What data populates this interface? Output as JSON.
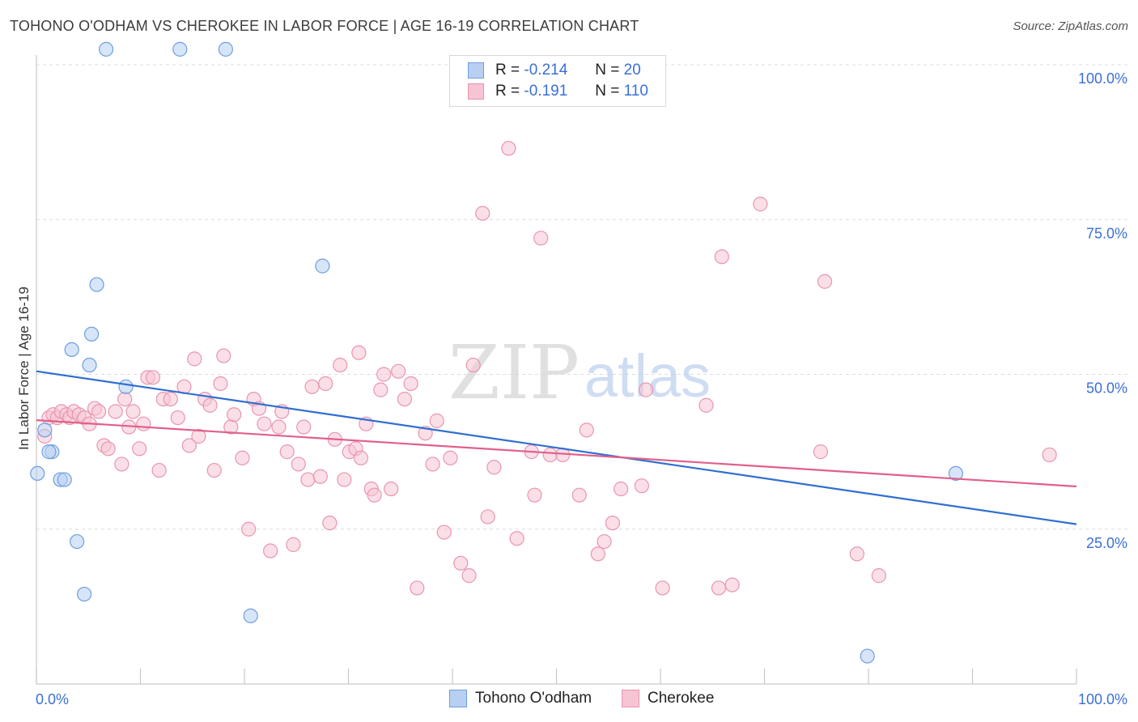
{
  "title": "TOHONO O'ODHAM VS CHEROKEE IN LABOR FORCE | AGE 16-19 CORRELATION CHART",
  "source": "Source: ZipAtlas.com",
  "watermark": {
    "zip": "ZIP",
    "atlas": "atlas"
  },
  "legend": {
    "rows": [
      {
        "r_label": "R =",
        "r_value": "-0.214",
        "n_label": "N =",
        "n_value": "20"
      },
      {
        "r_label": "R =",
        "r_value": "-0.191",
        "n_label": "N =",
        "n_value": "110"
      }
    ]
  },
  "colors": {
    "blue_fill": "#b7d0f2",
    "blue_stroke": "#6e9ee0",
    "blue_line": "#2f6fd1",
    "pink_fill": "#f7c4d3",
    "pink_stroke": "#e895b0",
    "pink_line": "#e0608a",
    "tick_label": "#3a6fd8",
    "grid": "#dcdcdc"
  },
  "chart_data": {
    "type": "scatter",
    "title": "TOHONO O'ODHAM VS CHEROKEE IN LABOR FORCE | AGE 16-19 CORRELATION CHART",
    "xlabel": "",
    "ylabel": "In Labor Force | Age 16-19",
    "xlim": [
      0,
      100
    ],
    "ylim": [
      0,
      105
    ],
    "x_tick_labels": [
      "0.0%",
      "100.0%"
    ],
    "y_ticks": [
      25,
      50,
      75,
      100
    ],
    "y_tick_labels": [
      "25.0%",
      "50.0%",
      "75.0%",
      "100.0%"
    ],
    "series": [
      {
        "name": "Tohono O'odham",
        "color": "blue",
        "r": -0.214,
        "n": 20,
        "trend": {
          "x": [
            0,
            100
          ],
          "y": [
            50.5,
            25.8
          ]
        },
        "points": [
          [
            6.7,
            102.5
          ],
          [
            13.8,
            102.5
          ],
          [
            18.2,
            102.5
          ],
          [
            27.5,
            67.5
          ],
          [
            5.8,
            64.5
          ],
          [
            5.3,
            56.5
          ],
          [
            3.4,
            54.0
          ],
          [
            5.1,
            51.5
          ],
          [
            8.6,
            48.0
          ],
          [
            0.8,
            41.0
          ],
          [
            1.5,
            37.5
          ],
          [
            0.1,
            34.0
          ],
          [
            2.3,
            33.0
          ],
          [
            2.7,
            33.0
          ],
          [
            3.9,
            23.0
          ],
          [
            4.6,
            14.5
          ],
          [
            20.6,
            11.0
          ],
          [
            88.4,
            34.0
          ],
          [
            79.9,
            4.5
          ],
          [
            1.2,
            37.5
          ]
        ]
      },
      {
        "name": "Cherokee",
        "color": "pink",
        "r": -0.191,
        "n": 110,
        "trend": {
          "x": [
            0,
            100
          ],
          "y": [
            42.6,
            31.9
          ]
        },
        "points": [
          [
            0.8,
            40.0
          ],
          [
            1.2,
            43.0
          ],
          [
            1.6,
            43.5
          ],
          [
            2.0,
            43.0
          ],
          [
            2.4,
            44.0
          ],
          [
            2.9,
            43.5
          ],
          [
            3.2,
            43.0
          ],
          [
            3.6,
            44.0
          ],
          [
            4.1,
            43.5
          ],
          [
            4.6,
            43.0
          ],
          [
            5.1,
            42.0
          ],
          [
            5.6,
            44.5
          ],
          [
            6.0,
            44.0
          ],
          [
            6.5,
            38.5
          ],
          [
            6.9,
            38.0
          ],
          [
            7.6,
            44.0
          ],
          [
            8.2,
            35.5
          ],
          [
            8.9,
            41.5
          ],
          [
            9.3,
            44.0
          ],
          [
            9.9,
            38.0
          ],
          [
            10.3,
            42.0
          ],
          [
            10.7,
            49.5
          ],
          [
            11.2,
            49.5
          ],
          [
            11.8,
            34.5
          ],
          [
            12.2,
            46.0
          ],
          [
            12.9,
            46.0
          ],
          [
            13.6,
            43.0
          ],
          [
            14.2,
            48.0
          ],
          [
            14.7,
            38.5
          ],
          [
            15.2,
            52.5
          ],
          [
            15.6,
            40.0
          ],
          [
            16.2,
            46.0
          ],
          [
            16.7,
            45.0
          ],
          [
            17.1,
            34.5
          ],
          [
            17.7,
            48.5
          ],
          [
            18.0,
            53.0
          ],
          [
            18.7,
            41.5
          ],
          [
            19.0,
            43.5
          ],
          [
            19.8,
            36.5
          ],
          [
            20.4,
            25.0
          ],
          [
            20.9,
            46.0
          ],
          [
            21.4,
            44.5
          ],
          [
            21.9,
            42.0
          ],
          [
            22.5,
            21.5
          ],
          [
            23.3,
            41.5
          ],
          [
            23.6,
            44.0
          ],
          [
            24.1,
            37.5
          ],
          [
            24.7,
            22.5
          ],
          [
            25.2,
            35.5
          ],
          [
            25.7,
            41.5
          ],
          [
            26.1,
            33.0
          ],
          [
            26.5,
            48.0
          ],
          [
            27.3,
            33.5
          ],
          [
            27.8,
            48.5
          ],
          [
            28.2,
            26.0
          ],
          [
            28.7,
            39.5
          ],
          [
            29.2,
            51.5
          ],
          [
            29.6,
            33.0
          ],
          [
            30.1,
            37.5
          ],
          [
            30.7,
            38.0
          ],
          [
            31.2,
            36.5
          ],
          [
            31.7,
            42.0
          ],
          [
            32.2,
            31.5
          ],
          [
            32.5,
            30.5
          ],
          [
            33.1,
            47.5
          ],
          [
            33.4,
            50.0
          ],
          [
            34.1,
            31.5
          ],
          [
            34.8,
            50.5
          ],
          [
            35.4,
            46.0
          ],
          [
            36.6,
            15.5
          ],
          [
            37.4,
            40.5
          ],
          [
            38.1,
            35.5
          ],
          [
            38.5,
            42.5
          ],
          [
            39.2,
            24.5
          ],
          [
            39.8,
            36.5
          ],
          [
            40.8,
            19.5
          ],
          [
            41.6,
            17.5
          ],
          [
            42.0,
            51.5
          ],
          [
            42.9,
            76.0
          ],
          [
            43.4,
            27.0
          ],
          [
            44.0,
            35.0
          ],
          [
            45.4,
            86.5
          ],
          [
            46.2,
            23.5
          ],
          [
            47.6,
            37.5
          ],
          [
            47.9,
            30.5
          ],
          [
            48.5,
            72.0
          ],
          [
            49.4,
            37.0
          ],
          [
            50.6,
            37.0
          ],
          [
            52.2,
            30.5
          ],
          [
            52.9,
            41.0
          ],
          [
            54.0,
            21.0
          ],
          [
            54.6,
            23.0
          ],
          [
            55.4,
            26.0
          ],
          [
            56.2,
            31.5
          ],
          [
            58.2,
            32.0
          ],
          [
            58.6,
            47.5
          ],
          [
            60.2,
            15.5
          ],
          [
            64.4,
            45.0
          ],
          [
            65.6,
            15.5
          ],
          [
            65.9,
            69.0
          ],
          [
            66.9,
            16.0
          ],
          [
            69.6,
            77.5
          ],
          [
            75.4,
            37.5
          ],
          [
            75.8,
            65.0
          ],
          [
            78.9,
            21.0
          ],
          [
            81.0,
            17.5
          ],
          [
            97.4,
            37.0
          ],
          [
            36.0,
            48.5
          ],
          [
            31.0,
            53.5
          ],
          [
            8.5,
            46.0
          ]
        ]
      }
    ]
  },
  "bottom_legend": [
    {
      "label": "Tohono O'odham"
    },
    {
      "label": "Cherokee"
    }
  ]
}
